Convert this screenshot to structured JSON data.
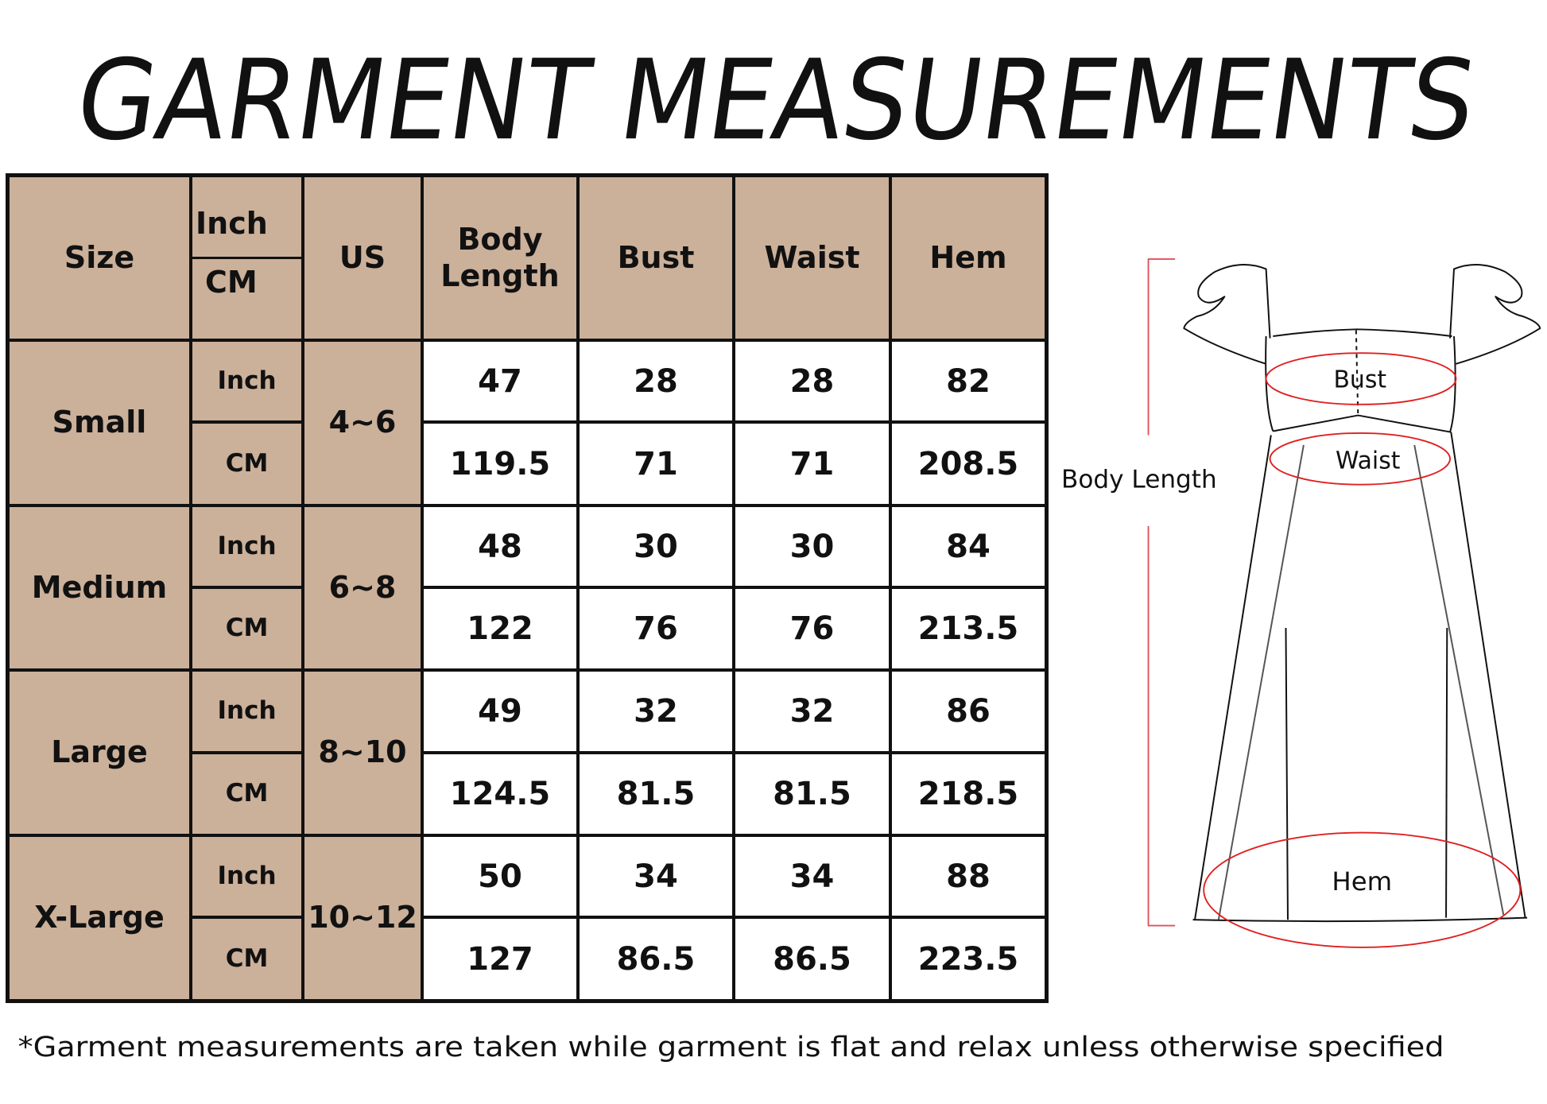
{
  "title": "GARMENT MEASUREMENTS",
  "table": {
    "headers": {
      "size": "Size",
      "unit_inch": "Inch",
      "unit_cm": "CM",
      "us": "US",
      "body_length_line1": "Body",
      "body_length_line2": "Length",
      "bust": "Bust",
      "waist": "Waist",
      "hem": "Hem"
    },
    "rows": [
      {
        "size": "Small",
        "us": "4~6",
        "inch": {
          "unit": "Inch",
          "body_length": "47",
          "bust": "28",
          "waist": "28",
          "hem": "82"
        },
        "cm": {
          "unit": "CM",
          "body_length": "119.5",
          "bust": "71",
          "waist": "71",
          "hem": "208.5"
        }
      },
      {
        "size": "Medium",
        "us": "6~8",
        "inch": {
          "unit": "Inch",
          "body_length": "48",
          "bust": "30",
          "waist": "30",
          "hem": "84"
        },
        "cm": {
          "unit": "CM",
          "body_length": "122",
          "bust": "76",
          "waist": "76",
          "hem": "213.5"
        }
      },
      {
        "size": "Large",
        "us": "8~10",
        "inch": {
          "unit": "Inch",
          "body_length": "49",
          "bust": "32",
          "waist": "32",
          "hem": "86"
        },
        "cm": {
          "unit": "CM",
          "body_length": "124.5",
          "bust": "81.5",
          "waist": "81.5",
          "hem": "218.5"
        }
      },
      {
        "size": "X-Large",
        "us": "10~12",
        "inch": {
          "unit": "Inch",
          "body_length": "50",
          "bust": "34",
          "waist": "34",
          "hem": "88"
        },
        "cm": {
          "unit": "CM",
          "body_length": "127",
          "bust": "86.5",
          "waist": "86.5",
          "hem": "223.5"
        }
      }
    ]
  },
  "diagram": {
    "body_length_label": "Body Length",
    "bust_label": "Bust",
    "waist_label": "Waist",
    "hem_label": "Hem"
  },
  "footnote": "*Garment measurements are taken while garment is flat and relax unless otherwise specified",
  "colors": {
    "header_fill": "#cbb09a",
    "border": "#111111",
    "measure_line": "#e02020"
  }
}
